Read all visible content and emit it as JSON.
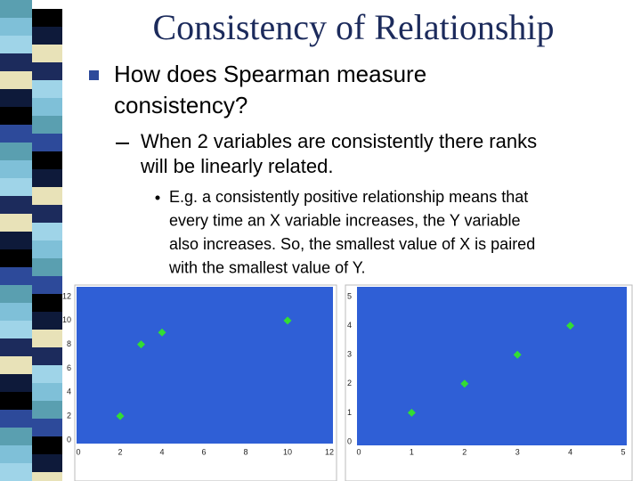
{
  "title": "Consistency of Relationship",
  "level1": [
    "How does Spearman measure",
    "consistency?"
  ],
  "level2": [
    "When 2 variables are consistently there ranks",
    "will be linearly related."
  ],
  "level3": [
    "E.g. a consistently positive relationship means that",
    "every time an X variable increases, the Y variable",
    "also increases.  So, the smallest value of X is paired",
    "with the smallest value of Y."
  ],
  "chart_data": [
    {
      "type": "scatter",
      "x": [
        2,
        3,
        4,
        10
      ],
      "values": [
        2,
        8,
        9,
        10
      ],
      "color": "#33dd33",
      "background": "#2f5fd6",
      "xlim": [
        0,
        12
      ],
      "ylim": [
        0,
        12
      ],
      "xticks": [
        0,
        2,
        4,
        6,
        8,
        10,
        12
      ],
      "yticks": [
        0,
        2,
        4,
        6,
        8,
        10,
        12
      ]
    },
    {
      "type": "scatter",
      "x": [
        1,
        2,
        3,
        4
      ],
      "values": [
        1,
        2,
        3,
        4
      ],
      "color": "#33dd33",
      "background": "#2f5fd6",
      "xlim": [
        0,
        5
      ],
      "ylim": [
        0,
        5
      ],
      "xticks": [
        0,
        1,
        2,
        3,
        4,
        5
      ],
      "yticks": [
        0,
        1,
        2,
        3,
        4,
        5
      ]
    }
  ]
}
